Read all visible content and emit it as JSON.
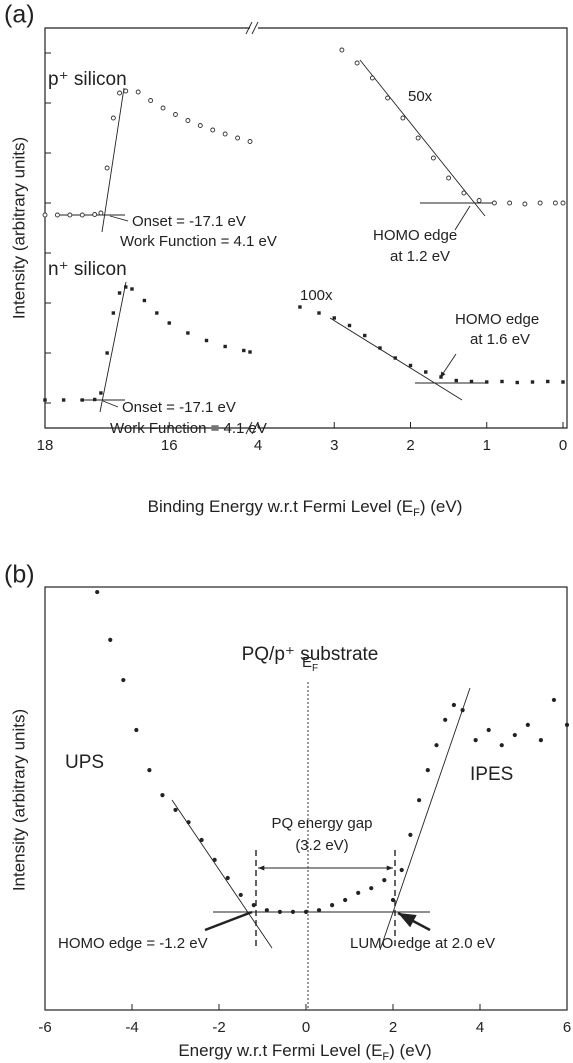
{
  "chart_data": [
    {
      "type": "scatter",
      "panel_label": "(a)",
      "xlabel": [
        "Binding Energy w.r.t Fermi Level (E",
        "F",
        ") (eV)"
      ],
      "ylabel": "Intensity (arbitrary units)",
      "ylim": [
        0,
        8
      ],
      "yticks": [
        0.5,
        1.5,
        2.5,
        3.5,
        4.5,
        5.5,
        6.5,
        7.5
      ],
      "ytick_labels": false,
      "segments": [
        {
          "xlim": [
            18,
            14.7
          ],
          "xticks": [
            18,
            16
          ]
        },
        {
          "xlim": [
            4,
            0
          ],
          "xticks": [
            4,
            3,
            2,
            1,
            0
          ]
        }
      ],
      "series": [
        {
          "segment": 0,
          "marker": "circle-open",
          "color": "#333",
          "x": [
            18.0,
            17.8,
            17.6,
            17.4,
            17.2,
            17.1,
            17.0,
            16.9,
            16.8,
            16.7,
            16.5,
            16.3,
            16.1,
            15.9,
            15.7,
            15.5,
            15.3,
            15.1,
            14.9,
            14.7
          ],
          "values": [
            4.26,
            4.26,
            4.26,
            4.26,
            4.27,
            4.3,
            5.2,
            6.2,
            6.7,
            6.74,
            6.72,
            6.55,
            6.4,
            6.27,
            6.15,
            6.05,
            5.96,
            5.88,
            5.8,
            5.73
          ]
        },
        {
          "segment": 1,
          "marker": "circle-open",
          "color": "#333",
          "x": [
            2.9,
            2.7,
            2.5,
            2.3,
            2.1,
            1.9,
            1.7,
            1.5,
            1.3,
            1.1,
            0.9,
            0.7,
            0.5,
            0.3,
            0.1,
            0.0
          ],
          "values": [
            7.56,
            7.3,
            7.0,
            6.6,
            6.2,
            5.8,
            5.4,
            5.0,
            4.7,
            4.55,
            4.5,
            4.5,
            4.48,
            4.5,
            4.5,
            4.5
          ]
        },
        {
          "segment": 0,
          "marker": "square",
          "color": "#222",
          "x": [
            18.0,
            17.7,
            17.4,
            17.2,
            17.1,
            17.0,
            16.9,
            16.8,
            16.7,
            16.6,
            16.4,
            16.2,
            16.0,
            15.7,
            15.4,
            15.1,
            14.8,
            14.7
          ],
          "values": [
            0.56,
            0.56,
            0.56,
            0.57,
            0.7,
            1.5,
            2.3,
            2.7,
            2.82,
            2.78,
            2.55,
            2.3,
            2.1,
            1.9,
            1.75,
            1.63,
            1.55,
            1.52
          ]
        },
        {
          "segment": 1,
          "marker": "square",
          "color": "#222",
          "x": [
            3.45,
            3.2,
            3.0,
            2.8,
            2.6,
            2.4,
            2.2,
            2.0,
            1.8,
            1.6,
            1.4,
            1.2,
            1.0,
            0.8,
            0.6,
            0.4,
            0.2,
            0.0
          ],
          "values": [
            2.42,
            2.3,
            2.2,
            2.05,
            1.85,
            1.6,
            1.4,
            1.25,
            1.12,
            1.02,
            0.95,
            0.93,
            0.92,
            0.93,
            0.91,
            0.92,
            0.93,
            0.92
          ]
        }
      ],
      "annotations": {
        "p_silicon": "p⁺ silicon",
        "n_silicon": "n⁺ silicon",
        "p_scale": "50x",
        "n_scale": "100x",
        "p_onset": "Onset = -17.1 eV",
        "p_work": "Work Function = 4.1 eV",
        "n_onset": "Onset = -17.1 eV",
        "n_work": "Work Function = 4.1 eV",
        "p_homo_1": "HOMO edge",
        "p_homo_2": "at 1.2 eV",
        "n_homo_1": "HOMO edge",
        "n_homo_2": "at 1.6 eV"
      }
    },
    {
      "type": "scatter",
      "panel_label": "(b)",
      "xlabel": [
        "Energy w.r.t Fermi Level (E",
        "F",
        ") (eV)"
      ],
      "ylabel": "Intensity (arbitrary units)",
      "xlim": [
        -6,
        6
      ],
      "xticks": [
        -6,
        -4,
        -2,
        0,
        2,
        4,
        6
      ],
      "ylim": [
        0,
        10
      ],
      "series": [
        {
          "marker": "circle",
          "color": "#222",
          "x": [
            -4.8,
            -4.5,
            -4.2,
            -3.9,
            -3.6,
            -3.3,
            -3.0,
            -2.7,
            -2.4,
            -2.1,
            -1.8,
            -1.5,
            -1.2,
            -0.9,
            -0.6,
            -0.3,
            0.0,
            0.3,
            0.6,
            0.9,
            1.2,
            1.5,
            1.8
          ],
          "values": [
            9.88,
            8.75,
            7.8,
            6.62,
            5.67,
            5.08,
            4.73,
            4.44,
            4.02,
            3.55,
            3.12,
            2.72,
            2.48,
            2.36,
            2.32,
            2.32,
            2.32,
            2.36,
            2.48,
            2.6,
            2.77,
            2.88,
            3.07
          ]
        },
        {
          "marker": "circle",
          "color": "#222",
          "x": [
            2.0,
            2.2,
            2.4,
            2.6,
            2.8,
            3.0,
            3.2,
            3.4,
            3.6,
            3.9,
            4.2,
            4.5,
            4.8,
            5.1,
            5.4,
            5.7,
            6.0
          ],
          "values": [
            2.6,
            3.31,
            4.14,
            4.96,
            5.67,
            6.26,
            6.86,
            7.21,
            7.09,
            6.38,
            6.62,
            6.26,
            6.5,
            6.74,
            6.38,
            7.33,
            6.74
          ]
        }
      ],
      "annotations": {
        "title": "PQ/p⁺ substrate",
        "ef": [
          "E",
          "F"
        ],
        "ups": "UPS",
        "ipes": "IPES",
        "gap_1": "PQ energy gap",
        "gap_2": "(3.2 eV)",
        "homo": "HOMO edge = -1.2 eV",
        "lumo": "LUMO edge at 2.0 eV"
      }
    }
  ]
}
